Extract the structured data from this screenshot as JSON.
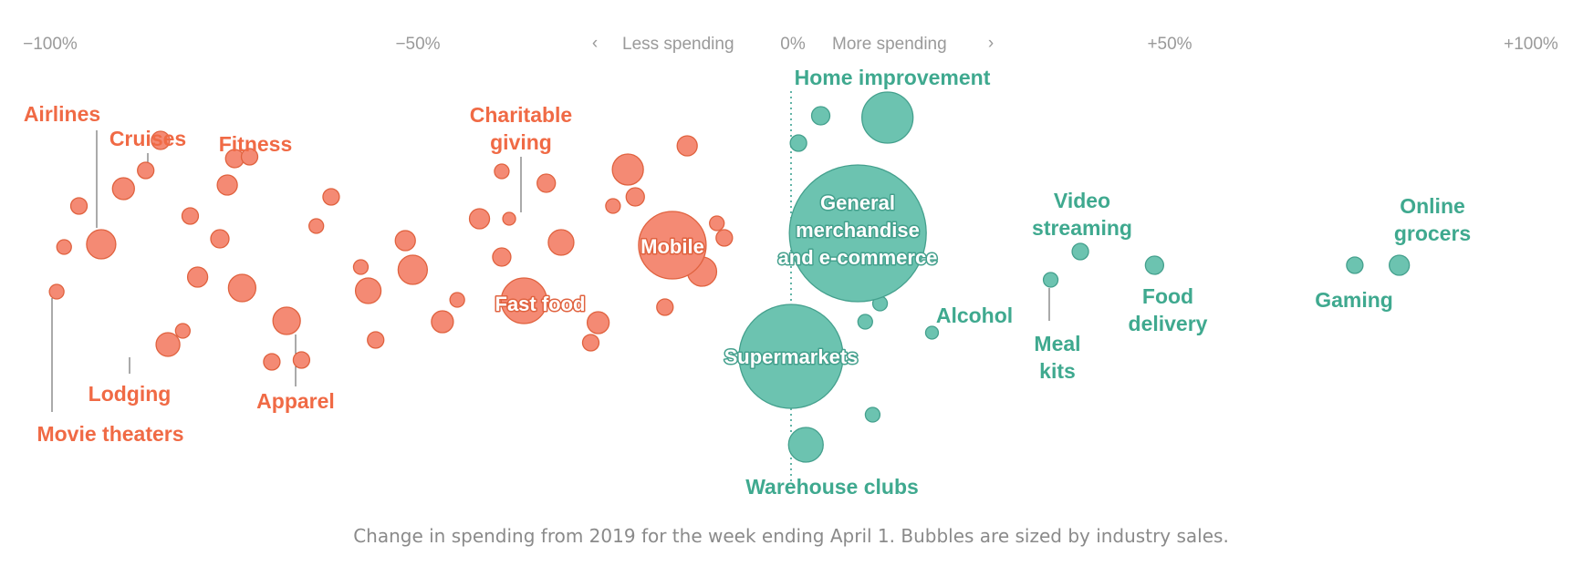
{
  "colors": {
    "decrease": "#f48a74",
    "decrease_stroke": "#e0623f",
    "decrease_text": "#f06a45",
    "increase": "#6cc3b0",
    "increase_stroke": "#44a08d",
    "increase_text": "#3fa98f"
  },
  "caption": "Change in spending from 2019 for the week ending April 1. Bubbles are sized by industry sales.",
  "chart_data": {
    "type": "scatter",
    "xlabel": "",
    "ylabel": "",
    "xlim": [
      -100,
      100
    ],
    "axis": {
      "ticks": [
        {
          "value": -100,
          "label": "−100%"
        },
        {
          "value": -50,
          "label": "−50%"
        },
        {
          "value": 0,
          "label": "0%"
        },
        {
          "value": 50,
          "label": "+50%"
        },
        {
          "value": 100,
          "label": "+100%"
        }
      ],
      "less_label": "Less spending",
      "more_label": "More spending"
    },
    "named_bubbles": [
      {
        "name": "Airlines",
        "change": -93,
        "size": 16,
        "group": "down"
      },
      {
        "name": "Cruises",
        "change": -87,
        "size": 9,
        "group": "down"
      },
      {
        "name": "Fitness",
        "change": -76,
        "size": 11,
        "group": "down"
      },
      {
        "name": "Movie theaters",
        "change": -99,
        "size": 8,
        "group": "down"
      },
      {
        "name": "Lodging",
        "change": -84,
        "size": 13,
        "group": "down"
      },
      {
        "name": "Apparel",
        "change": -68,
        "size": 15,
        "group": "down"
      },
      {
        "name": "Charitable giving",
        "change": -38,
        "size": 7,
        "group": "down"
      },
      {
        "name": "Fast food",
        "change": -36,
        "size": 25,
        "group": "down"
      },
      {
        "name": "Mobile",
        "change": -16,
        "size": 37,
        "group": "down"
      },
      {
        "name": "Home improvement",
        "change": 13,
        "size": 28,
        "group": "up"
      },
      {
        "name": "General merchandise and e-commerce",
        "change": 9,
        "size": 75,
        "group": "up"
      },
      {
        "name": "Supermarkets",
        "change": 0,
        "size": 57,
        "group": "up"
      },
      {
        "name": "Warehouse clubs",
        "change": 2,
        "size": 19,
        "group": "up"
      },
      {
        "name": "Alcohol",
        "change": 19,
        "size": 7,
        "group": "up"
      },
      {
        "name": "Video streaming",
        "change": 39,
        "size": 9,
        "group": "up"
      },
      {
        "name": "Meal kits",
        "change": 35,
        "size": 8,
        "group": "up"
      },
      {
        "name": "Food delivery",
        "change": 49,
        "size": 10,
        "group": "up"
      },
      {
        "name": "Gaming",
        "change": 76,
        "size": 9,
        "group": "up"
      },
      {
        "name": "Online grocers",
        "change": 82,
        "size": 11,
        "group": "up"
      }
    ],
    "other_bubbles": [
      {
        "change": -96,
        "size": 9
      },
      {
        "change": -98,
        "size": 8
      },
      {
        "change": -90,
        "size": 12
      },
      {
        "change": -82,
        "size": 8
      },
      {
        "change": -85,
        "size": 10
      },
      {
        "change": -81,
        "size": 9
      },
      {
        "change": -80,
        "size": 11
      },
      {
        "change": -75,
        "size": 10
      },
      {
        "change": -74,
        "size": 15
      },
      {
        "change": -77,
        "size": 10
      },
      {
        "change": -73,
        "size": 9
      },
      {
        "change": -70,
        "size": 9
      },
      {
        "change": -66,
        "size": 9
      },
      {
        "change": -64,
        "size": 8
      },
      {
        "change": -62,
        "size": 9
      },
      {
        "change": -58,
        "size": 8
      },
      {
        "change": -57,
        "size": 14
      },
      {
        "change": -56,
        "size": 9
      },
      {
        "change": -52,
        "size": 11
      },
      {
        "change": -51,
        "size": 16
      },
      {
        "change": -47,
        "size": 12
      },
      {
        "change": -45,
        "size": 8
      },
      {
        "change": -42,
        "size": 11
      },
      {
        "change": -39,
        "size": 10
      },
      {
        "change": -39,
        "size": 8
      },
      {
        "change": -33,
        "size": 10
      },
      {
        "change": -31,
        "size": 14
      },
      {
        "change": -27,
        "size": 9
      },
      {
        "change": -24,
        "size": 8
      },
      {
        "change": -26,
        "size": 12
      },
      {
        "change": -21,
        "size": 10
      },
      {
        "change": -22,
        "size": 17
      },
      {
        "change": -17,
        "size": 10
      },
      {
        "change": -17,
        "size": 9
      },
      {
        "change": -14,
        "size": 11
      },
      {
        "change": -12,
        "size": 16
      },
      {
        "change": -9,
        "size": 9
      },
      {
        "change": -10,
        "size": 8
      },
      {
        "change": -3,
        "size": 9
      },
      {
        "change": -4,
        "size": 10
      },
      {
        "change": 1,
        "size": 9
      },
      {
        "change": 4,
        "size": 10
      },
      {
        "change": 9,
        "size": 11
      },
      {
        "change": 11,
        "size": 8
      },
      {
        "change": 10,
        "size": 8
      },
      {
        "change": 12,
        "size": 8
      },
      {
        "change": 7,
        "size": 8
      }
    ]
  }
}
